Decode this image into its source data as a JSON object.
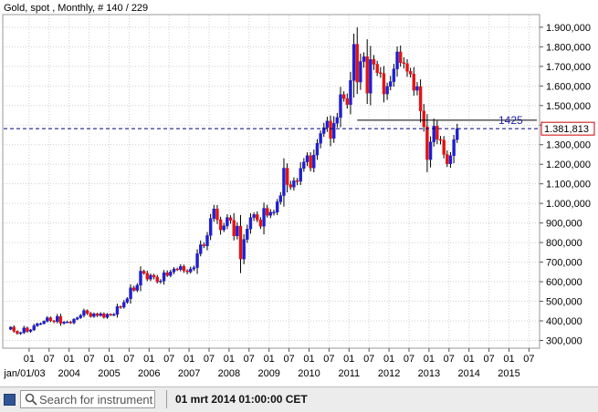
{
  "chart_data": {
    "type": "candlestick",
    "title": "Gold, spot , Monthly, # 140 / 229",
    "ylim": [
      265000,
      1960000
    ],
    "y_ticks": [
      300000,
      400000,
      500000,
      600000,
      700000,
      800000,
      900000,
      1000000,
      1100000,
      1200000,
      1300000,
      1400000,
      1500000,
      1600000,
      1700000,
      1800000,
      1900000
    ],
    "y_tick_labels": [
      "300,000",
      "400,000",
      "500,000",
      "600,000",
      "700,000",
      "800,000",
      "900,000",
      "1.000,000",
      "1.100,000",
      "1.200,000",
      "1.300,000",
      "1.400,000",
      "1.500,000",
      "1.600,000",
      "1.700,000",
      "1.800,000",
      "1.900,000"
    ],
    "x_ticks_top": [
      "01",
      "07",
      "01",
      "07",
      "01",
      "07",
      "01",
      "07",
      "01",
      "07",
      "01",
      "07",
      "01",
      "07",
      "01",
      "07",
      "01",
      "07",
      "01",
      "07",
      "01",
      "07",
      "01",
      "07",
      "01",
      "07",
      "01"
    ],
    "x_ticks_bottom": [
      "jan/01/03",
      "2004",
      "2005",
      "2006",
      "2007",
      "2008",
      "2009",
      "2010",
      "2011",
      "2012",
      "2013",
      "2014",
      "2015"
    ],
    "up_color": "#1f1fd0",
    "down_color": "#e01414",
    "last_value": 1381813,
    "last_value_label": "1.381,813",
    "level_line": 1425000,
    "level_label": "1425",
    "monthly_closes": [
      368000,
      347000,
      335000,
      340000,
      364000,
      346000,
      354000,
      375000,
      385000,
      386000,
      398000,
      416000,
      400000,
      396000,
      423000,
      388000,
      394000,
      394000,
      390000,
      408000,
      416000,
      428000,
      453000,
      438000,
      422000,
      436000,
      427000,
      436000,
      418000,
      434000,
      429000,
      433000,
      473000,
      470000,
      495000,
      513000,
      569000,
      556000,
      582000,
      654000,
      643000,
      613000,
      633000,
      624000,
      599000,
      604000,
      646000,
      632000,
      650000,
      665000,
      662000,
      678000,
      656000,
      650000,
      665000,
      672000,
      743000,
      789000,
      783000,
      836000,
      923000,
      972000,
      917000,
      865000,
      885000,
      928000,
      913000,
      834000,
      884000,
      716000,
      816000,
      869000,
      928000,
      943000,
      916000,
      883000,
      975000,
      939000,
      955000,
      955000,
      1008000,
      1040000,
      1180000,
      1096000,
      1083000,
      1116000,
      1113000,
      1179000,
      1212000,
      1244000,
      1181000,
      1247000,
      1307000,
      1357000,
      1387000,
      1421000,
      1332000,
      1409000,
      1439000,
      1556000,
      1536000,
      1505000,
      1628000,
      1813000,
      1620000,
      1725000,
      1750000,
      1563000,
      1735000,
      1711000,
      1668000,
      1664000,
      1559000,
      1598000,
      1622000,
      1687000,
      1774000,
      1719000,
      1714000,
      1675000,
      1661000,
      1578000,
      1597000,
      1472000,
      1392000,
      1224000,
      1314000,
      1395000,
      1327000,
      1324000,
      1250000,
      1202000,
      1244000,
      1326000,
      1381813
    ]
  },
  "status": {
    "search_placeholder": "Search for instrument",
    "datetime": "01 mrt 2014 01:00:00 CET"
  },
  "colors": {
    "grid": "#d0d0d0",
    "dashed_line": "#00007f",
    "level_line": "#000000",
    "last_box": "#cc0000"
  }
}
